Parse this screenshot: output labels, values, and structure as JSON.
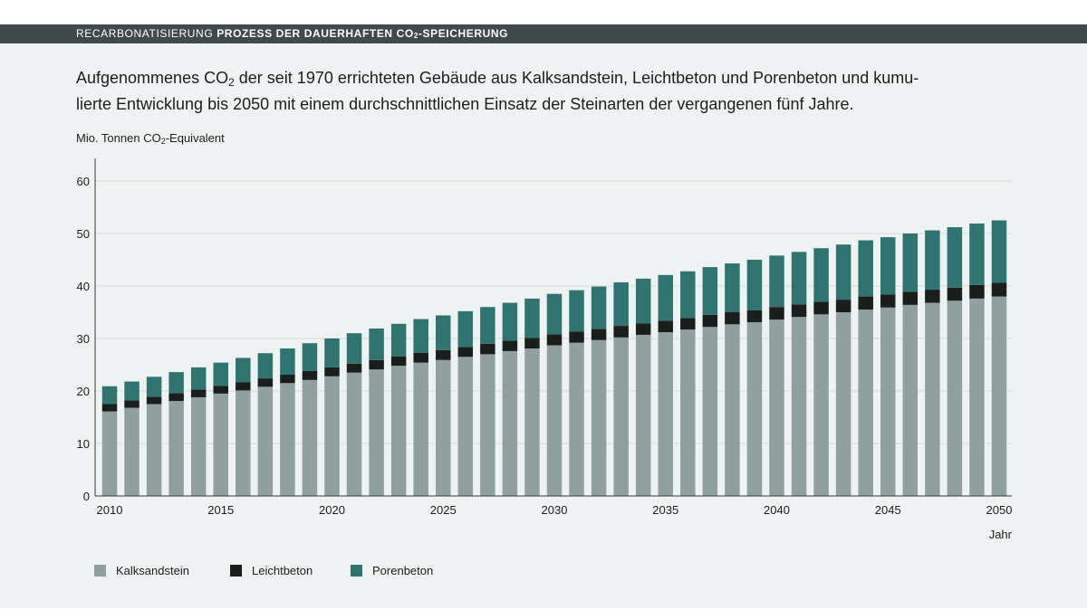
{
  "header": {
    "kicker_light": "RECARBONATISIERUNG",
    "kicker_bold": "PROZESS DER DAUERHAFTEN CO",
    "kicker_bold_sub": "2",
    "kicker_bold_tail": "-SPEICHERUNG"
  },
  "subtitle": {
    "part1": "Aufgenommenes CO",
    "sub": "2",
    "part2": " der seit 1970 errichteten Gebäude aus Kalksandstein, Leichtbeton und Porenbeton und kumu-\nlierte Entwicklung bis 2050 mit einem durchschnittlichen Einsatz der Steinarten der vergangenen fünf Jahre."
  },
  "colors": {
    "panel": "#eef2f2",
    "header": "#3f4b4a",
    "kalksandstein": "#8fa09e",
    "leichtbeton": "#1a1f1e",
    "porenbeton": "#2f7470",
    "grid": "#d5dcdb",
    "axis": "#3a3a3a"
  },
  "chart_data": {
    "type": "bar",
    "stacked": true,
    "ylabel_part1": "Mio. Tonnen CO",
    "ylabel_sub": "2",
    "ylabel_part2": "-Equivalent",
    "xlabel": "Jahr",
    "ylim": [
      0,
      65
    ],
    "yticks": [
      0,
      10,
      20,
      30,
      40,
      50,
      60
    ],
    "xtick_labels": [
      "2010",
      "2015",
      "2020",
      "2025",
      "2030",
      "2035",
      "2040",
      "2045",
      "2050"
    ],
    "grid": true,
    "legend_position": "bottom-left",
    "categories": [
      2010,
      2011,
      2012,
      2013,
      2014,
      2015,
      2016,
      2017,
      2018,
      2019,
      2020,
      2021,
      2022,
      2023,
      2024,
      2025,
      2026,
      2027,
      2028,
      2029,
      2030,
      2031,
      2032,
      2033,
      2034,
      2035,
      2036,
      2037,
      2038,
      2039,
      2040,
      2041,
      2042,
      2043,
      2044,
      2045,
      2046,
      2047,
      2048,
      2049,
      2050
    ],
    "series": [
      {
        "name": "Kalksandstein",
        "values": [
          16.1,
          16.8,
          17.5,
          18.1,
          18.8,
          19.5,
          20.1,
          20.8,
          21.5,
          22.1,
          22.8,
          23.5,
          24.1,
          24.8,
          25.4,
          25.9,
          26.5,
          27.0,
          27.6,
          28.1,
          28.7,
          29.2,
          29.7,
          30.2,
          30.7,
          31.2,
          31.7,
          32.2,
          32.7,
          33.1,
          33.6,
          34.1,
          34.6,
          35.0,
          35.5,
          35.9,
          36.4,
          36.8,
          37.2,
          37.6,
          38.0
        ]
      },
      {
        "name": "Leichtbeton",
        "values": [
          1.4,
          1.4,
          1.4,
          1.5,
          1.5,
          1.5,
          1.6,
          1.6,
          1.6,
          1.7,
          1.7,
          1.7,
          1.8,
          1.8,
          1.9,
          1.9,
          1.9,
          2.0,
          2.0,
          2.0,
          2.1,
          2.1,
          2.1,
          2.2,
          2.2,
          2.2,
          2.2,
          2.3,
          2.3,
          2.3,
          2.4,
          2.4,
          2.4,
          2.4,
          2.5,
          2.5,
          2.5,
          2.5,
          2.5,
          2.6,
          2.6
        ]
      },
      {
        "name": "Porenbeton",
        "values": [
          3.4,
          3.6,
          3.8,
          4.0,
          4.2,
          4.4,
          4.6,
          4.8,
          5.0,
          5.3,
          5.5,
          5.8,
          6.0,
          6.2,
          6.4,
          6.6,
          6.8,
          7.0,
          7.2,
          7.5,
          7.7,
          7.9,
          8.1,
          8.3,
          8.5,
          8.7,
          8.9,
          9.1,
          9.3,
          9.6,
          9.8,
          10.0,
          10.2,
          10.5,
          10.7,
          10.9,
          11.1,
          11.3,
          11.5,
          11.7,
          11.9
        ]
      }
    ]
  }
}
